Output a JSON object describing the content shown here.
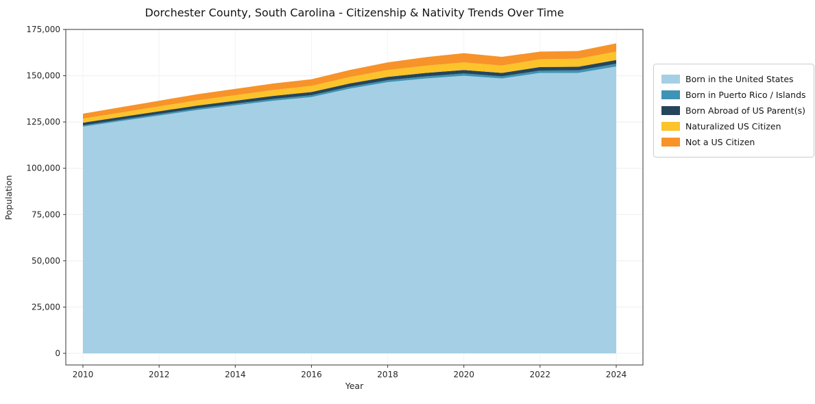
{
  "title": "Dorchester County, South Carolina - Citizenship & Nativity Trends Over Time",
  "chart_data": {
    "type": "area",
    "stacked": true,
    "title": "Dorchester County, South Carolina - Citizenship & Nativity Trends Over Time",
    "xlabel": "Year",
    "ylabel": "Population",
    "x": [
      2010,
      2011,
      2012,
      2013,
      2014,
      2015,
      2016,
      2017,
      2018,
      2019,
      2020,
      2021,
      2022,
      2023,
      2024
    ],
    "xticks": [
      2010,
      2012,
      2014,
      2016,
      2018,
      2020,
      2022,
      2024
    ],
    "yticks": [
      0,
      25000,
      50000,
      75000,
      100000,
      125000,
      150000,
      175000
    ],
    "ylim": [
      0,
      175000
    ],
    "grid": true,
    "legend_position": "right",
    "series": [
      {
        "name": "Born in the United States",
        "color": "#a5cfe4",
        "values": [
          122500,
          125500,
          128500,
          131500,
          134000,
          136500,
          138500,
          143000,
          146500,
          148500,
          150000,
          148500,
          151500,
          151500,
          155000
        ]
      },
      {
        "name": "Born in Puerto Rico / Islands",
        "color": "#3f93b5",
        "values": [
          700,
          750,
          800,
          850,
          900,
          950,
          1000,
          1050,
          1100,
          1150,
          1200,
          1150,
          1300,
          1400,
          1500
        ]
      },
      {
        "name": "Born Abroad of US Parent(s)",
        "color": "#25455a",
        "values": [
          1400,
          1450,
          1500,
          1550,
          1600,
          1650,
          1700,
          1750,
          1800,
          1850,
          1900,
          1850,
          1900,
          1950,
          2000
        ]
      },
      {
        "name": "Naturalized US Citizen",
        "color": "#fcc32b",
        "values": [
          2200,
          2400,
          2600,
          2800,
          3000,
          3200,
          3300,
          3500,
          3700,
          3900,
          4100,
          4000,
          4200,
          4300,
          4500
        ]
      },
      {
        "name": "Not a US Citizen",
        "color": "#f79329",
        "values": [
          2700,
          2900,
          3100,
          3300,
          3400,
          3500,
          3600,
          3800,
          4100,
          4600,
          5000,
          4700,
          4100,
          4200,
          4500
        ]
      }
    ]
  }
}
